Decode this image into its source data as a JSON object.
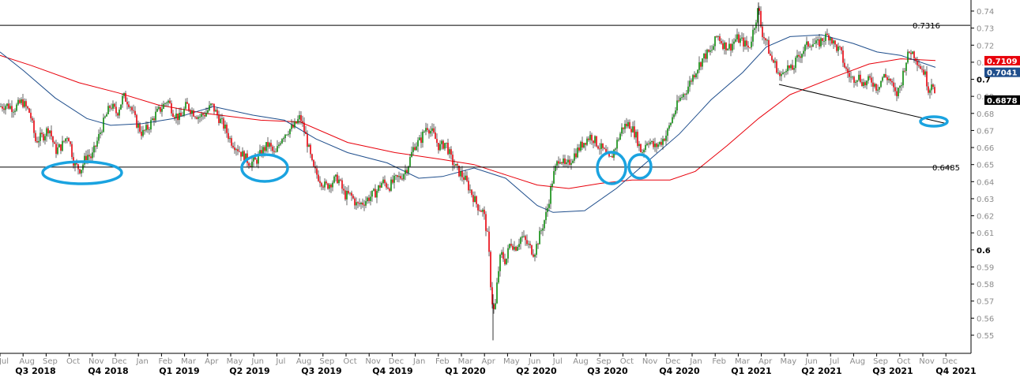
{
  "chart_data": {
    "type": "candlestick",
    "ylim": [
      0.545,
      0.745
    ],
    "y_ticks": [
      "0.74",
      "0.73",
      "0.72",
      "0.71",
      "0.7",
      "0.69",
      "0.68",
      "0.67",
      "0.66",
      "0.65",
      "0.64",
      "0.63",
      "0.62",
      "0.61",
      "0.6",
      "0.59",
      "0.58",
      "0.57",
      "0.56",
      "0.55"
    ],
    "y_tick_values": [
      0.74,
      0.73,
      0.72,
      0.71,
      0.7,
      0.69,
      0.68,
      0.67,
      0.66,
      0.65,
      0.64,
      0.63,
      0.62,
      0.61,
      0.6,
      0.59,
      0.58,
      0.57,
      0.56,
      0.55
    ],
    "bold_ticks": [
      "0.7",
      "0.6"
    ],
    "month_labels": [
      "Jul",
      "Aug",
      "Sep",
      "Oct",
      "Nov",
      "Dec",
      "Jan",
      "Feb",
      "Mar",
      "Apr",
      "May",
      "Jun",
      "Jul",
      "Aug",
      "Sep",
      "Oct",
      "Nov",
      "Dec",
      "Jan",
      "Feb",
      "Mar",
      "Apr",
      "May",
      "Jun",
      "Jul",
      "Aug",
      "Sep",
      "Oct",
      "Nov",
      "Dec",
      "Jan",
      "Feb",
      "Mar",
      "Apr",
      "May",
      "Jun",
      "Jul",
      "Aug",
      "Sep",
      "Oct",
      "Nov",
      "Dec"
    ],
    "quarter_labels": [
      "Q3 2018",
      "Q4 2018",
      "Q1 2019",
      "Q2 2019",
      "Q3 2019",
      "Q4 2019",
      "Q1 2020",
      "Q2 2020",
      "Q3 2020",
      "Q4 2020",
      "Q1 2021",
      "Q2 2021",
      "Q3 2021",
      "Q4 2021"
    ],
    "horizontal_levels": [
      {
        "label": "0.7316",
        "value": 0.7316
      },
      {
        "label": "0.6485",
        "value": 0.6485
      }
    ],
    "price_badges": [
      {
        "label": "0.7109",
        "value": 0.7109,
        "color": "#e8000b"
      },
      {
        "label": "0.7041",
        "value": 0.7041,
        "color": "#1f4e8c"
      },
      {
        "label": "0.6878",
        "value": 0.6878,
        "color": "#000000"
      }
    ],
    "price_path": [
      [
        0,
        0.684
      ],
      [
        8,
        0.685
      ],
      [
        18,
        0.683
      ],
      [
        28,
        0.687
      ],
      [
        38,
        0.68
      ],
      [
        45,
        0.664
      ],
      [
        55,
        0.667
      ],
      [
        62,
        0.672
      ],
      [
        70,
        0.658
      ],
      [
        78,
        0.661
      ],
      [
        86,
        0.668
      ],
      [
        94,
        0.65
      ],
      [
        102,
        0.647
      ],
      [
        110,
        0.656
      ],
      [
        116,
        0.654
      ],
      [
        124,
        0.665
      ],
      [
        132,
        0.676
      ],
      [
        140,
        0.685
      ],
      [
        148,
        0.68
      ],
      [
        156,
        0.69
      ],
      [
        164,
        0.686
      ],
      [
        172,
        0.675
      ],
      [
        180,
        0.668
      ],
      [
        188,
        0.672
      ],
      [
        196,
        0.679
      ],
      [
        204,
        0.683
      ],
      [
        212,
        0.688
      ],
      [
        220,
        0.68
      ],
      [
        228,
        0.677
      ],
      [
        236,
        0.685
      ],
      [
        244,
        0.681
      ],
      [
        252,
        0.678
      ],
      [
        260,
        0.68
      ],
      [
        268,
        0.685
      ],
      [
        276,
        0.678
      ],
      [
        284,
        0.672
      ],
      [
        292,
        0.664
      ],
      [
        300,
        0.66
      ],
      [
        308,
        0.655
      ],
      [
        316,
        0.651
      ],
      [
        324,
        0.652
      ],
      [
        332,
        0.658
      ],
      [
        340,
        0.662
      ],
      [
        348,
        0.655
      ],
      [
        356,
        0.666
      ],
      [
        364,
        0.67
      ],
      [
        372,
        0.672
      ],
      [
        380,
        0.678
      ],
      [
        388,
        0.665
      ],
      [
        396,
        0.648
      ],
      [
        404,
        0.642
      ],
      [
        412,
        0.637
      ],
      [
        420,
        0.64
      ],
      [
        428,
        0.642
      ],
      [
        436,
        0.632
      ],
      [
        444,
        0.632
      ],
      [
        452,
        0.626
      ],
      [
        460,
        0.628
      ],
      [
        468,
        0.631
      ],
      [
        476,
        0.634
      ],
      [
        484,
        0.64
      ],
      [
        492,
        0.637
      ],
      [
        500,
        0.641
      ],
      [
        508,
        0.643
      ],
      [
        516,
        0.649
      ],
      [
        524,
        0.661
      ],
      [
        532,
        0.664
      ],
      [
        540,
        0.673
      ],
      [
        548,
        0.668
      ],
      [
        556,
        0.66
      ],
      [
        564,
        0.663
      ],
      [
        572,
        0.652
      ],
      [
        580,
        0.646
      ],
      [
        588,
        0.642
      ],
      [
        596,
        0.634
      ],
      [
        604,
        0.626
      ],
      [
        612,
        0.622
      ],
      [
        618,
        0.605
      ],
      [
        622,
        0.572
      ],
      [
        626,
        0.562
      ],
      [
        630,
        0.585
      ],
      [
        634,
        0.598
      ],
      [
        640,
        0.593
      ],
      [
        646,
        0.605
      ],
      [
        652,
        0.601
      ],
      [
        660,
        0.608
      ],
      [
        668,
        0.603
      ],
      [
        676,
        0.598
      ],
      [
        684,
        0.61
      ],
      [
        692,
        0.622
      ],
      [
        700,
        0.643
      ],
      [
        708,
        0.655
      ],
      [
        716,
        0.648
      ],
      [
        724,
        0.654
      ],
      [
        732,
        0.659
      ],
      [
        740,
        0.664
      ],
      [
        748,
        0.667
      ],
      [
        756,
        0.662
      ],
      [
        764,
        0.658
      ],
      [
        772,
        0.652
      ],
      [
        780,
        0.662
      ],
      [
        788,
        0.672
      ],
      [
        796,
        0.674
      ],
      [
        804,
        0.668
      ],
      [
        812,
        0.657
      ],
      [
        820,
        0.665
      ],
      [
        828,
        0.66
      ],
      [
        836,
        0.663
      ],
      [
        844,
        0.668
      ],
      [
        852,
        0.679
      ],
      [
        860,
        0.688
      ],
      [
        868,
        0.693
      ],
      [
        876,
        0.701
      ],
      [
        884,
        0.708
      ],
      [
        892,
        0.714
      ],
      [
        900,
        0.716
      ],
      [
        908,
        0.726
      ],
      [
        916,
        0.72
      ],
      [
        924,
        0.719
      ],
      [
        932,
        0.724
      ],
      [
        940,
        0.722
      ],
      [
        948,
        0.718
      ],
      [
        956,
        0.734
      ],
      [
        960,
        0.742
      ],
      [
        964,
        0.728
      ],
      [
        970,
        0.722
      ],
      [
        976,
        0.712
      ],
      [
        982,
        0.708
      ],
      [
        988,
        0.7
      ],
      [
        994,
        0.708
      ],
      [
        1002,
        0.705
      ],
      [
        1010,
        0.713
      ],
      [
        1018,
        0.718
      ],
      [
        1026,
        0.722
      ],
      [
        1034,
        0.72
      ],
      [
        1042,
        0.724
      ],
      [
        1050,
        0.726
      ],
      [
        1056,
        0.72
      ],
      [
        1064,
        0.716
      ],
      [
        1070,
        0.706
      ],
      [
        1078,
        0.7
      ],
      [
        1086,
        0.702
      ],
      [
        1094,
        0.697
      ],
      [
        1102,
        0.7
      ],
      [
        1110,
        0.695
      ],
      [
        1118,
        0.702
      ],
      [
        1126,
        0.7
      ],
      [
        1134,
        0.69
      ],
      [
        1140,
        0.697
      ],
      [
        1146,
        0.71
      ],
      [
        1152,
        0.717
      ],
      [
        1158,
        0.714
      ],
      [
        1164,
        0.708
      ],
      [
        1170,
        0.704
      ],
      [
        1176,
        0.693
      ],
      [
        1180,
        0.701
      ],
      [
        1184,
        0.688
      ]
    ],
    "ma_red": [
      [
        0,
        0.714
      ],
      [
        40,
        0.708
      ],
      [
        100,
        0.698
      ],
      [
        150,
        0.692
      ],
      [
        200,
        0.685
      ],
      [
        260,
        0.68
      ],
      [
        330,
        0.676
      ],
      [
        380,
        0.675
      ],
      [
        440,
        0.663
      ],
      [
        500,
        0.657
      ],
      [
        560,
        0.653
      ],
      [
        600,
        0.65
      ],
      [
        640,
        0.644
      ],
      [
        680,
        0.638
      ],
      [
        720,
        0.636
      ],
      [
        760,
        0.639
      ],
      [
        800,
        0.641
      ],
      [
        848,
        0.641
      ],
      [
        880,
        0.646
      ],
      [
        920,
        0.661
      ],
      [
        960,
        0.677
      ],
      [
        1000,
        0.691
      ],
      [
        1060,
        0.702
      ],
      [
        1100,
        0.709
      ],
      [
        1140,
        0.712
      ],
      [
        1184,
        0.711
      ]
    ],
    "ma_blue": [
      [
        0,
        0.716
      ],
      [
        30,
        0.705
      ],
      [
        70,
        0.689
      ],
      [
        110,
        0.677
      ],
      [
        140,
        0.673
      ],
      [
        180,
        0.674
      ],
      [
        220,
        0.677
      ],
      [
        270,
        0.684
      ],
      [
        320,
        0.679
      ],
      [
        360,
        0.676
      ],
      [
        400,
        0.665
      ],
      [
        440,
        0.657
      ],
      [
        490,
        0.651
      ],
      [
        530,
        0.642
      ],
      [
        560,
        0.643
      ],
      [
        600,
        0.648
      ],
      [
        640,
        0.642
      ],
      [
        680,
        0.626
      ],
      [
        700,
        0.622
      ],
      [
        740,
        0.623
      ],
      [
        780,
        0.636
      ],
      [
        820,
        0.652
      ],
      [
        860,
        0.668
      ],
      [
        900,
        0.688
      ],
      [
        940,
        0.704
      ],
      [
        970,
        0.719
      ],
      [
        1000,
        0.725
      ],
      [
        1040,
        0.726
      ],
      [
        1080,
        0.721
      ],
      [
        1110,
        0.716
      ],
      [
        1140,
        0.714
      ],
      [
        1184,
        0.707
      ]
    ]
  }
}
